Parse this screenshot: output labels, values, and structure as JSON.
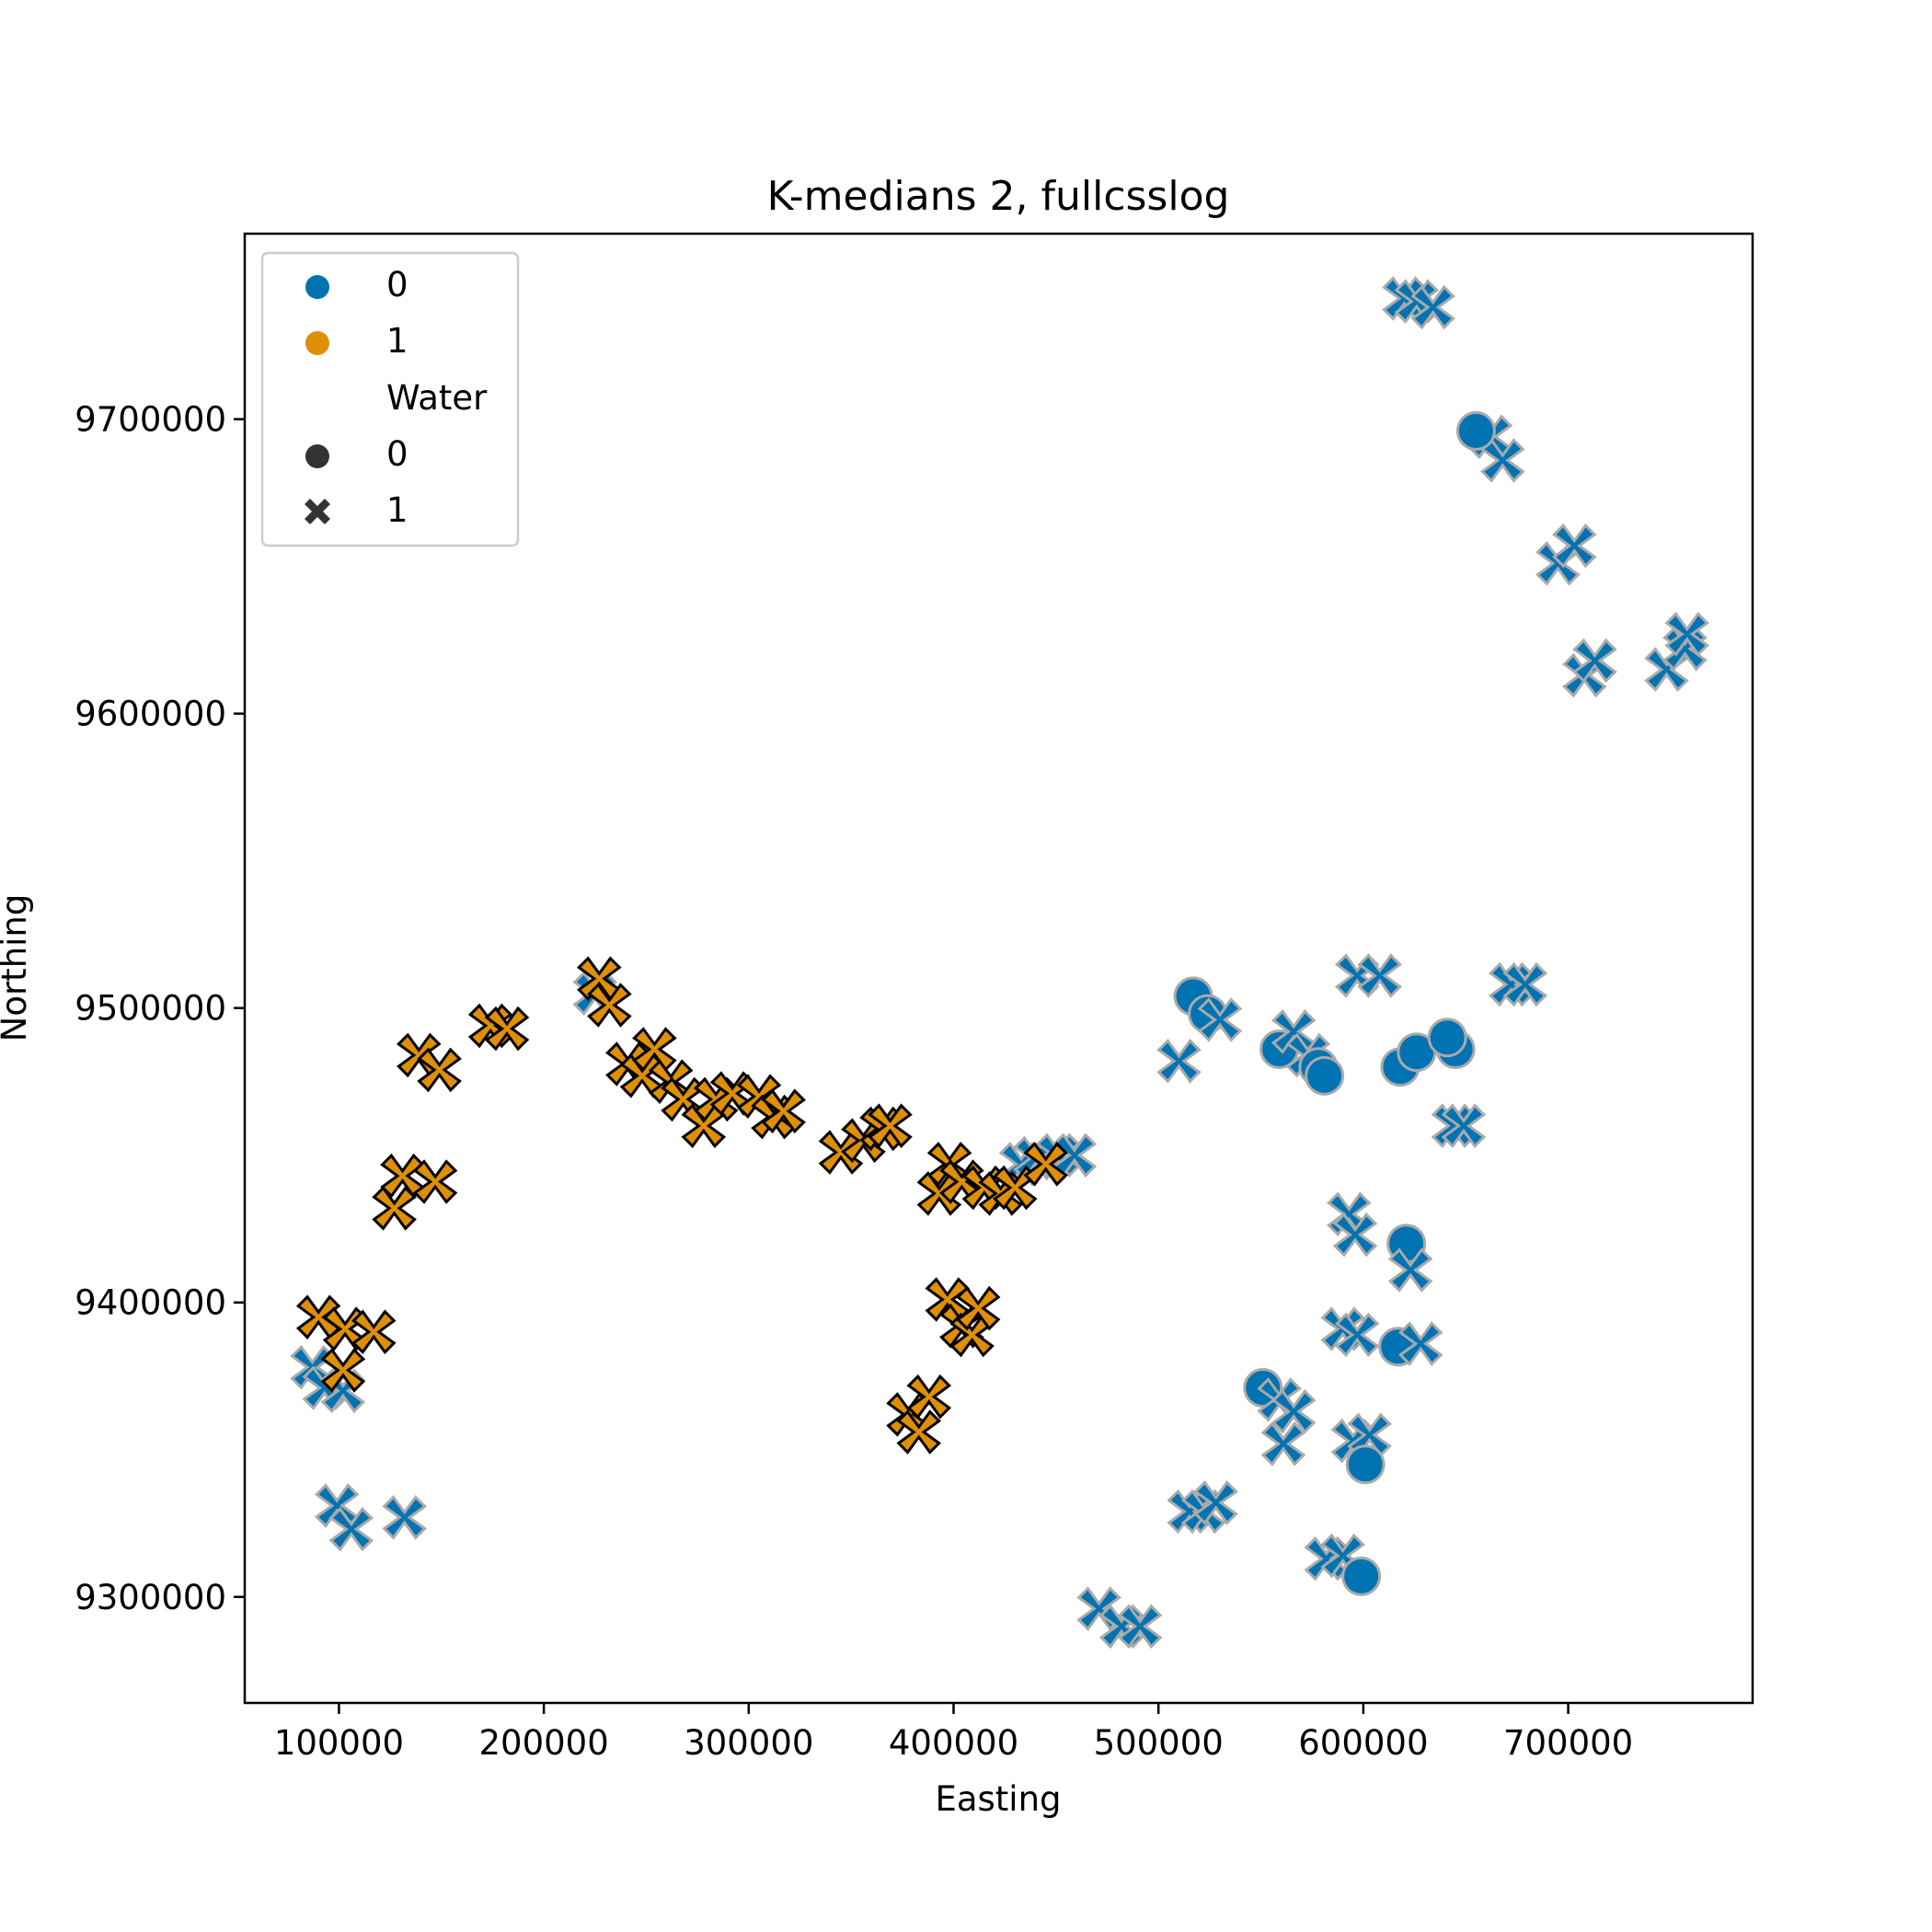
{
  "chart_data": {
    "type": "scatter",
    "title": "K-medians 2, fullcsslog",
    "xlabel": "Easting",
    "ylabel": "Northing",
    "xlim": [
      54000,
      790000
    ],
    "ylim": [
      9264000,
      9763000
    ],
    "xticks": [
      100000,
      200000,
      300000,
      400000,
      500000,
      600000,
      700000
    ],
    "yticks": [
      9300000,
      9400000,
      9500000,
      9600000,
      9700000
    ],
    "grid": false,
    "legend": {
      "position": "upper-left",
      "hue_title": "",
      "hue_entries": [
        {
          "label": "0",
          "color": "#0173b2"
        },
        {
          "label": "1",
          "color": "#de8f05"
        }
      ],
      "style_title": "Water",
      "style_entries": [
        {
          "label": "0",
          "marker": "circle"
        },
        {
          "label": "1",
          "marker": "x"
        }
      ]
    },
    "series": [
      {
        "cluster": 0,
        "color": "#0173b2",
        "points": [
          [
            620000,
            9741000,
            1
          ],
          [
            626000,
            9740000,
            1
          ],
          [
            634000,
            9738000,
            1
          ],
          [
            662000,
            9694000,
            1
          ],
          [
            668000,
            9686000,
            1
          ],
          [
            655000,
            9696000,
            0
          ],
          [
            695000,
            9651000,
            1
          ],
          [
            703000,
            9657000,
            1
          ],
          [
            708000,
            9613000,
            1
          ],
          [
            713000,
            9618000,
            1
          ],
          [
            748000,
            9615000,
            1
          ],
          [
            757000,
            9622000,
            1
          ],
          [
            758000,
            9627000,
            1
          ],
          [
            597000,
            9511000,
            1
          ],
          [
            608000,
            9511000,
            1
          ],
          [
            672000,
            9508000,
            1
          ],
          [
            679000,
            9508000,
            1
          ],
          [
            517000,
            9504000,
            0
          ],
          [
            524000,
            9498000,
            0
          ],
          [
            530000,
            9496000,
            1
          ],
          [
            510000,
            9482000,
            1
          ],
          [
            559000,
            9486000,
            0
          ],
          [
            566000,
            9492000,
            1
          ],
          [
            573000,
            9484000,
            1
          ],
          [
            578000,
            9480000,
            0
          ],
          [
            581000,
            9477000,
            0
          ],
          [
            618000,
            9480000,
            0
          ],
          [
            626000,
            9485000,
            0
          ],
          [
            645000,
            9486000,
            0
          ],
          [
            641000,
            9490000,
            0
          ],
          [
            644000,
            9460000,
            1
          ],
          [
            649000,
            9460000,
            1
          ],
          [
            433000,
            9447000,
            1
          ],
          [
            440000,
            9449000,
            1
          ],
          [
            451000,
            9450000,
            1
          ],
          [
            459000,
            9450000,
            1
          ],
          [
            593000,
            9430000,
            1
          ],
          [
            596000,
            9423000,
            1
          ],
          [
            621000,
            9420000,
            0
          ],
          [
            623000,
            9411000,
            1
          ],
          [
            590000,
            9391000,
            1
          ],
          [
            597000,
            9389000,
            1
          ],
          [
            617000,
            9385000,
            0
          ],
          [
            628000,
            9386000,
            1
          ],
          [
            551000,
            9371000,
            0
          ],
          [
            559000,
            9367000,
            1
          ],
          [
            566000,
            9363000,
            1
          ],
          [
            561000,
            9352000,
            1
          ],
          [
            595000,
            9353000,
            1
          ],
          [
            603000,
            9355000,
            1
          ],
          [
            601000,
            9345000,
            0
          ],
          [
            515000,
            9329000,
            1
          ],
          [
            522000,
            9329000,
            1
          ],
          [
            528000,
            9332000,
            1
          ],
          [
            582000,
            9313000,
            1
          ],
          [
            590000,
            9314000,
            1
          ],
          [
            599000,
            9307000,
            0
          ],
          [
            471000,
            9296000,
            1
          ],
          [
            482000,
            9290000,
            1
          ],
          [
            491000,
            9290000,
            1
          ],
          [
            87000,
            9378000,
            1
          ],
          [
            93000,
            9371000,
            1
          ],
          [
            102000,
            9370000,
            1
          ],
          [
            99000,
            9331000,
            1
          ],
          [
            106000,
            9323000,
            1
          ],
          [
            132000,
            9327000,
            1
          ],
          [
            225000,
            9505000,
            1
          ]
        ]
      },
      {
        "cluster": 1,
        "color": "#de8f05",
        "points": [
          [
            90000,
            9395000,
            1
          ],
          [
            103000,
            9391000,
            1
          ],
          [
            117000,
            9390000,
            1
          ],
          [
            102000,
            9377000,
            1
          ],
          [
            127000,
            9432000,
            1
          ],
          [
            131000,
            9443000,
            1
          ],
          [
            147000,
            9441000,
            1
          ],
          [
            139000,
            9484000,
            1
          ],
          [
            149000,
            9479000,
            1
          ],
          [
            174000,
            9494000,
            1
          ],
          [
            182000,
            9493000,
            1
          ],
          [
            227000,
            9510000,
            1
          ],
          [
            232000,
            9501000,
            1
          ],
          [
            241000,
            9481000,
            1
          ],
          [
            248000,
            9477000,
            1
          ],
          [
            254000,
            9486000,
            1
          ],
          [
            262000,
            9475000,
            1
          ],
          [
            268000,
            9469000,
            1
          ],
          [
            278000,
            9460000,
            1
          ],
          [
            284000,
            9469000,
            1
          ],
          [
            292000,
            9471000,
            1
          ],
          [
            305000,
            9470000,
            1
          ],
          [
            312000,
            9463000,
            1
          ],
          [
            317000,
            9465000,
            1
          ],
          [
            345000,
            9451000,
            1
          ],
          [
            356000,
            9455000,
            1
          ],
          [
            365000,
            9459000,
            1
          ],
          [
            369000,
            9460000,
            1
          ],
          [
            393000,
            9437000,
            1
          ],
          [
            398000,
            9447000,
            1
          ],
          [
            404000,
            9441000,
            1
          ],
          [
            415000,
            9439000,
            1
          ],
          [
            423000,
            9437000,
            1
          ],
          [
            430000,
            9439000,
            1
          ],
          [
            445000,
            9447000,
            1
          ],
          [
            397000,
            9401000,
            1
          ],
          [
            404000,
            9392000,
            1
          ],
          [
            409000,
            9389000,
            1
          ],
          [
            412000,
            9398000,
            1
          ],
          [
            378000,
            9362000,
            1
          ],
          [
            383000,
            9356000,
            1
          ],
          [
            388000,
            9368000,
            1
          ]
        ]
      }
    ]
  }
}
